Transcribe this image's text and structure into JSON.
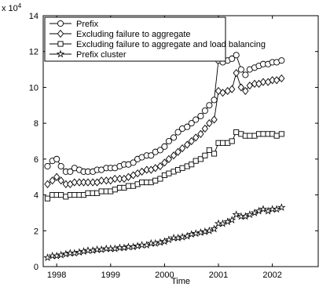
{
  "chart_data": {
    "type": "line",
    "title": "",
    "xlabel": "Time",
    "ylabel": "",
    "y_exponent_label": "x 10^4",
    "xlim": [
      1997.75,
      2002.85
    ],
    "ylim": [
      0,
      140000
    ],
    "x_ticks": [
      1998,
      1999,
      2000,
      2001,
      2002
    ],
    "y_ticks": [
      0,
      20000,
      40000,
      60000,
      80000,
      100000,
      120000,
      140000
    ],
    "y_tick_labels": [
      "0",
      "2",
      "4",
      "6",
      "8",
      "10",
      "12",
      "14"
    ],
    "x_tick_labels": [
      "1998",
      "1999",
      "2000",
      "2001",
      "2002"
    ],
    "grid": false,
    "legend_position": "top-left",
    "gap": [
      2000.9,
      2001.0
    ],
    "series": [
      {
        "name": "Prefix",
        "marker": "circle",
        "x": [
          1997.83,
          1997.92,
          1998.0,
          1998.08,
          1998.17,
          1998.25,
          1998.33,
          1998.42,
          1998.5,
          1998.58,
          1998.67,
          1998.75,
          1998.83,
          1998.92,
          1999.0,
          1999.08,
          1999.17,
          1999.25,
          1999.33,
          1999.42,
          1999.5,
          1999.58,
          1999.67,
          1999.75,
          1999.83,
          1999.92,
          2000.0,
          2000.08,
          2000.17,
          2000.25,
          2000.33,
          2000.42,
          2000.5,
          2000.58,
          2000.67,
          2000.75,
          2000.83,
          2000.92,
          2001.0,
          2001.08,
          2001.17,
          2001.25,
          2001.33,
          2001.42,
          2001.5,
          2001.58,
          2001.67,
          2001.75,
          2001.83,
          2001.92,
          2002.0,
          2002.08,
          2002.17
        ],
        "values": [
          56000,
          59000,
          60000,
          56000,
          53000,
          53000,
          55000,
          54000,
          53000,
          53000,
          53000,
          54000,
          54000,
          55000,
          55000,
          55000,
          56000,
          57000,
          57000,
          58000,
          60000,
          61000,
          62000,
          62000,
          64000,
          65000,
          67000,
          70000,
          72000,
          75000,
          77000,
          78000,
          80000,
          82000,
          84000,
          87000,
          90000,
          93000,
          115000,
          114000,
          115000,
          116000,
          118000,
          110000,
          107000,
          110000,
          111000,
          112000,
          113000,
          113000,
          114000,
          114000,
          115000
        ]
      },
      {
        "name": "Excluding failure to aggregate",
        "marker": "diamond",
        "x": [
          1997.83,
          1997.92,
          1998.0,
          1998.08,
          1998.17,
          1998.25,
          1998.33,
          1998.42,
          1998.5,
          1998.58,
          1998.67,
          1998.75,
          1998.83,
          1998.92,
          1999.0,
          1999.08,
          1999.17,
          1999.25,
          1999.33,
          1999.42,
          1999.5,
          1999.58,
          1999.67,
          1999.75,
          1999.83,
          1999.92,
          2000.0,
          2000.08,
          2000.17,
          2000.25,
          2000.33,
          2000.42,
          2000.5,
          2000.58,
          2000.67,
          2000.75,
          2000.83,
          2000.92,
          2001.0,
          2001.08,
          2001.17,
          2001.25,
          2001.33,
          2001.42,
          2001.5,
          2001.58,
          2001.67,
          2001.75,
          2001.83,
          2001.92,
          2002.0,
          2002.08,
          2002.17
        ],
        "values": [
          46000,
          48000,
          50000,
          48000,
          46000,
          46000,
          47000,
          47000,
          47000,
          47000,
          47000,
          47000,
          48000,
          48000,
          48000,
          49000,
          49000,
          49000,
          50000,
          51000,
          52000,
          53000,
          54000,
          54000,
          55000,
          56000,
          58000,
          60000,
          62000,
          64000,
          66000,
          68000,
          70000,
          72000,
          74000,
          77000,
          80000,
          82000,
          98000,
          97000,
          98000,
          99000,
          108000,
          100000,
          98000,
          101000,
          102000,
          102000,
          103000,
          103000,
          104000,
          104000,
          105000
        ]
      },
      {
        "name": "Excluding failure to aggregate and load balancing",
        "marker": "square",
        "x": [
          1997.83,
          1997.92,
          1998.0,
          1998.08,
          1998.17,
          1998.25,
          1998.33,
          1998.42,
          1998.5,
          1998.58,
          1998.67,
          1998.75,
          1998.83,
          1998.92,
          1999.0,
          1999.08,
          1999.17,
          1999.25,
          1999.33,
          1999.42,
          1999.5,
          1999.58,
          1999.67,
          1999.75,
          1999.83,
          1999.92,
          2000.0,
          2000.08,
          2000.17,
          2000.25,
          2000.33,
          2000.42,
          2000.5,
          2000.58,
          2000.67,
          2000.75,
          2000.83,
          2000.92,
          2001.0,
          2001.08,
          2001.17,
          2001.25,
          2001.33,
          2001.42,
          2001.5,
          2001.58,
          2001.67,
          2001.75,
          2001.83,
          2001.92,
          2002.0,
          2002.08,
          2002.17
        ],
        "values": [
          38000,
          40000,
          40000,
          40000,
          39000,
          40000,
          40000,
          40000,
          40000,
          41000,
          41000,
          41000,
          42000,
          42000,
          42000,
          43000,
          44000,
          44000,
          45000,
          45000,
          46000,
          47000,
          47000,
          47000,
          48000,
          49000,
          51000,
          52000,
          53000,
          54000,
          55000,
          56000,
          57000,
          59000,
          60000,
          62000,
          65000,
          63000,
          69000,
          69000,
          69000,
          70000,
          75000,
          74000,
          73000,
          73000,
          73000,
          74000,
          74000,
          74000,
          74000,
          73000,
          74000
        ]
      },
      {
        "name": "Prefix cluster",
        "marker": "star",
        "x": [
          1997.83,
          1997.92,
          1998.0,
          1998.08,
          1998.17,
          1998.25,
          1998.33,
          1998.42,
          1998.5,
          1998.58,
          1998.67,
          1998.75,
          1998.83,
          1998.92,
          1999.0,
          1999.08,
          1999.17,
          1999.25,
          1999.33,
          1999.42,
          1999.5,
          1999.58,
          1999.67,
          1999.75,
          1999.83,
          1999.92,
          2000.0,
          2000.08,
          2000.17,
          2000.25,
          2000.33,
          2000.42,
          2000.5,
          2000.58,
          2000.67,
          2000.75,
          2000.83,
          2000.92,
          2001.0,
          2001.08,
          2001.17,
          2001.25,
          2001.33,
          2001.42,
          2001.5,
          2001.58,
          2001.67,
          2001.75,
          2001.83,
          2001.92,
          2002.0,
          2002.08,
          2002.17
        ],
        "values": [
          5000,
          6000,
          6000,
          6500,
          7000,
          7500,
          7500,
          8000,
          8500,
          9000,
          9000,
          9500,
          9500,
          10000,
          10000,
          10000,
          10500,
          10500,
          11000,
          11000,
          11500,
          12000,
          12000,
          13000,
          13000,
          13500,
          14000,
          15000,
          16000,
          16000,
          16500,
          17000,
          18000,
          18500,
          19000,
          19500,
          20000,
          21000,
          24000,
          24000,
          25000,
          26000,
          29000,
          28000,
          28000,
          29000,
          30000,
          31000,
          32000,
          31000,
          32000,
          32000,
          33000
        ]
      }
    ]
  }
}
